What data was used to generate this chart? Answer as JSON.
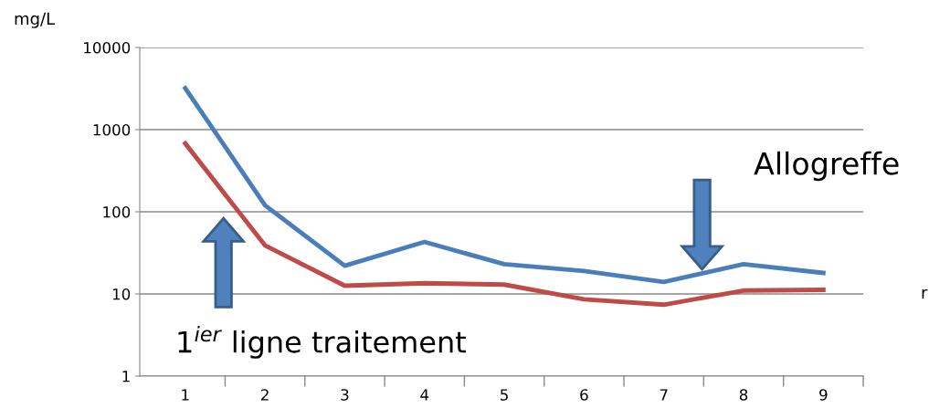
{
  "chart_data": {
    "type": "line",
    "ylabel": "mg/L",
    "xlabel": "r",
    "categories": [
      "1",
      "2",
      "3",
      "4",
      "5",
      "6",
      "7",
      "8",
      "9"
    ],
    "series": [
      {
        "color": "#4a7ebb",
        "values": [
          3200,
          120,
          22,
          43,
          23,
          19,
          14,
          23,
          18
        ]
      },
      {
        "color": "#be4b48",
        "values": [
          680,
          39,
          12.6,
          13.5,
          13,
          8.6,
          7.4,
          11,
          11.2
        ]
      }
    ],
    "log": "y",
    "ylim": [
      1,
      10000
    ],
    "yticks": [
      1,
      10,
      100,
      1000,
      10000
    ],
    "grid": "y",
    "marker": "none",
    "line_style": "solid",
    "annotations": [
      "1$^{ier}$ ligne traitement",
      "Allogreffe"
    ]
  }
}
